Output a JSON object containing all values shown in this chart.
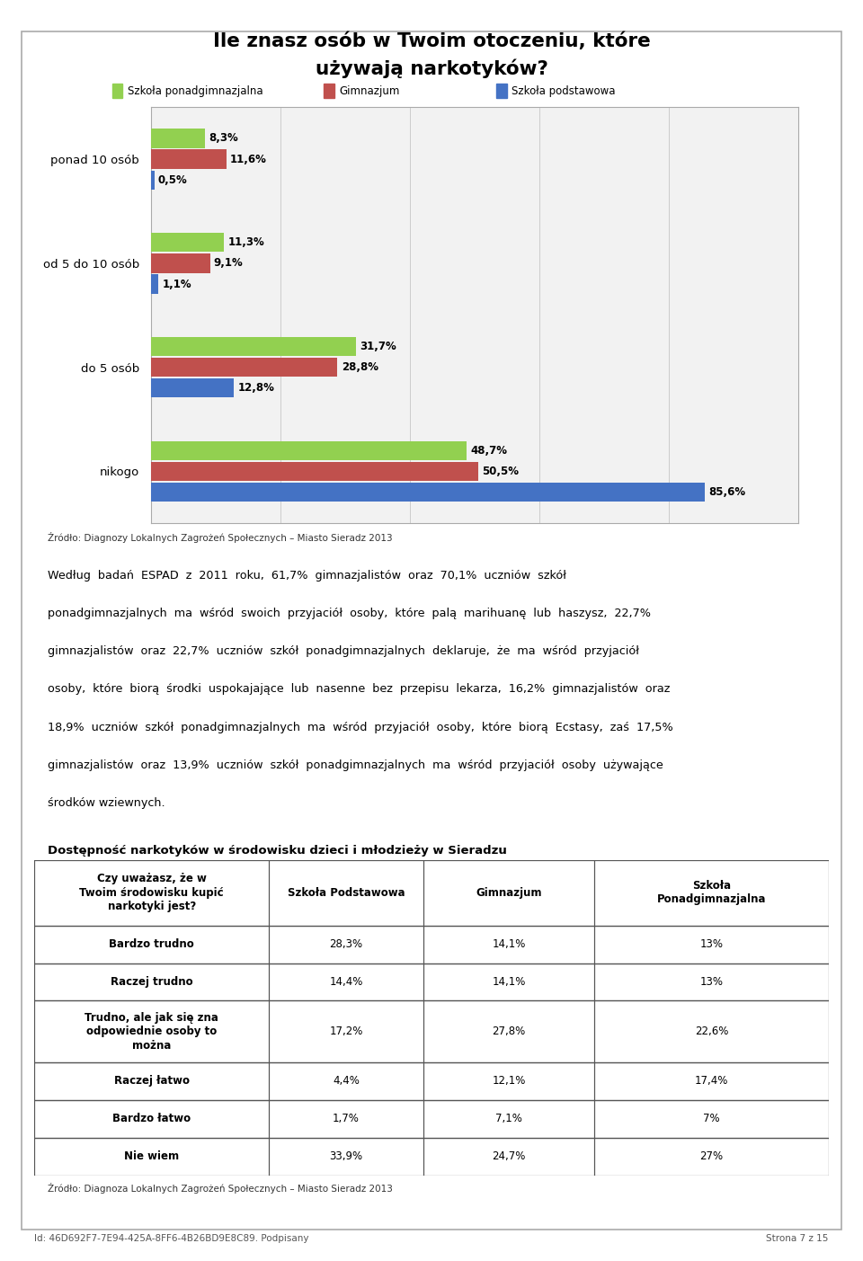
{
  "title_line1": "Ile znasz osób w Twoim otoczeniu, które",
  "title_line2": "używają narkotyków?",
  "legend_labels": [
    "Szkoła ponadgimnazjalna",
    "Gimnazjum",
    "Szkoła podstawowa"
  ],
  "legend_colors": [
    "#92d050",
    "#c0504d",
    "#4472c4"
  ],
  "categories": [
    "nikogo",
    "do 5 osób",
    "od 5 do 10 osób",
    "ponad 10 osób"
  ],
  "series": {
    "Szkoła ponadgimnazjalna": [
      48.7,
      31.7,
      11.3,
      8.3
    ],
    "Gimnazjum": [
      50.5,
      28.8,
      9.1,
      11.6
    ],
    "Szkoła podstawowa": [
      85.6,
      12.8,
      1.1,
      0.5
    ]
  },
  "bar_colors": [
    "#92d050",
    "#c0504d",
    "#4472c4"
  ],
  "chart_source": "Źródło: Diagnozy Lokalnych Zagrożeń Społecznych – Miasto Sieradz 2013",
  "paragraph_lines": [
    "Według  badań  ESPAD  z  2011  roku,  61,7%  gimnazjalistów  oraz  70,1%  uczniów  szkół",
    "ponadgimnazjalnych  ma  wśród  swoich  przyjaciół  osoby,  które  palą  marihuanę  lub  haszysz,  22,7%",
    "gimnazjalistów  oraz  22,7%  uczniów  szkół  ponadgimnazjalnych  deklaruje,  że  ma  wśród  przyjaciół",
    "osoby,  które  biorą  środki  uspokajające  lub  nasenne  bez  przepisu  lekarza,  16,2%  gimnazjalistów  oraz",
    "18,9%  uczniów  szkół  ponadgimnazjalnych  ma  wśród  przyjaciół  osoby,  które  biorą  Ecstasy,  zaś  17,5%",
    "gimnazjalistów  oraz  13,9%  uczniów  szkół  ponadgimnazjalnych  ma  wśród  przyjaciół  osoby  używające",
    "środków wziewnych."
  ],
  "table_title": "Dostępność narkotyków w środowisku dzieci i młodzieży w Sieradzu",
  "table_col_headers": [
    "Czy uważasz, że w\nTwoim środowisku kupić\nnarkotyki jest?",
    "Szkoła Podstawowa",
    "Gimnazjum",
    "Szkoła\nPonadgimnazjalna"
  ],
  "table_rows": [
    [
      "Bardzo trudno",
      "28,3%",
      "14,1%",
      "13%"
    ],
    [
      "Raczej trudno",
      "14,4%",
      "14,1%",
      "13%"
    ],
    [
      "Trudno, ale jak się zna\nodpowiednie osoby to\nmożna",
      "17,2%",
      "27,8%",
      "22,6%"
    ],
    [
      "Raczej łatwo",
      "4,4%",
      "12,1%",
      "17,4%"
    ],
    [
      "Bardzo łatwo",
      "1,7%",
      "7,1%",
      "7%"
    ],
    [
      "Nie wiem",
      "33,9%",
      "24,7%",
      "27%"
    ]
  ],
  "table_source": "Źródło: Diagnoza Lokalnych Zagrożeń Społecznych – Miasto Sieradz 2013",
  "footer_left": "Id: 46D692F7-7E94-425A-8FF6-4B26BD9E8C89. Podpisany",
  "footer_right": "Strona 7 z 15",
  "page_bg": "#ffffff"
}
